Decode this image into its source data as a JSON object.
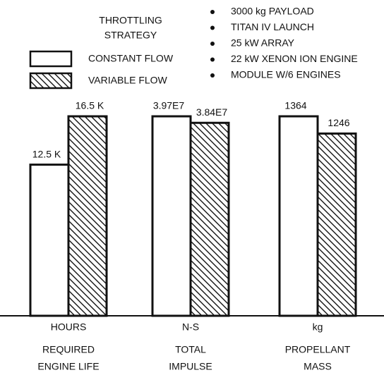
{
  "chart_data": {
    "type": "bar",
    "legend_title": [
      "THROTTLING",
      "STRATEGY"
    ],
    "notes": [
      "3000 kg PAYLOAD",
      "TITAN IV LAUNCH",
      "25 kW ARRAY",
      "22 kW XENON ION ENGINE",
      "MODULE W/6 ENGINES"
    ],
    "units": [
      "HOURS",
      "N-S",
      "kg"
    ],
    "categories": [
      [
        "REQUIRED",
        "ENGINE LIFE"
      ],
      [
        "TOTAL",
        "IMPULSE"
      ],
      [
        "PROPELLANT",
        "MASS"
      ]
    ],
    "series": [
      {
        "name": "CONSTANT FLOW",
        "hatch": false,
        "values": [
          12500,
          39700000,
          1364
        ],
        "value_labels": [
          "12.5 K",
          "3.97E7",
          "1364"
        ]
      },
      {
        "name": "VARIABLE FLOW",
        "hatch": true,
        "values": [
          16500,
          38400000,
          1246
        ],
        "value_labels": [
          "16.5 K",
          "3.84E7",
          "1246"
        ]
      }
    ]
  }
}
